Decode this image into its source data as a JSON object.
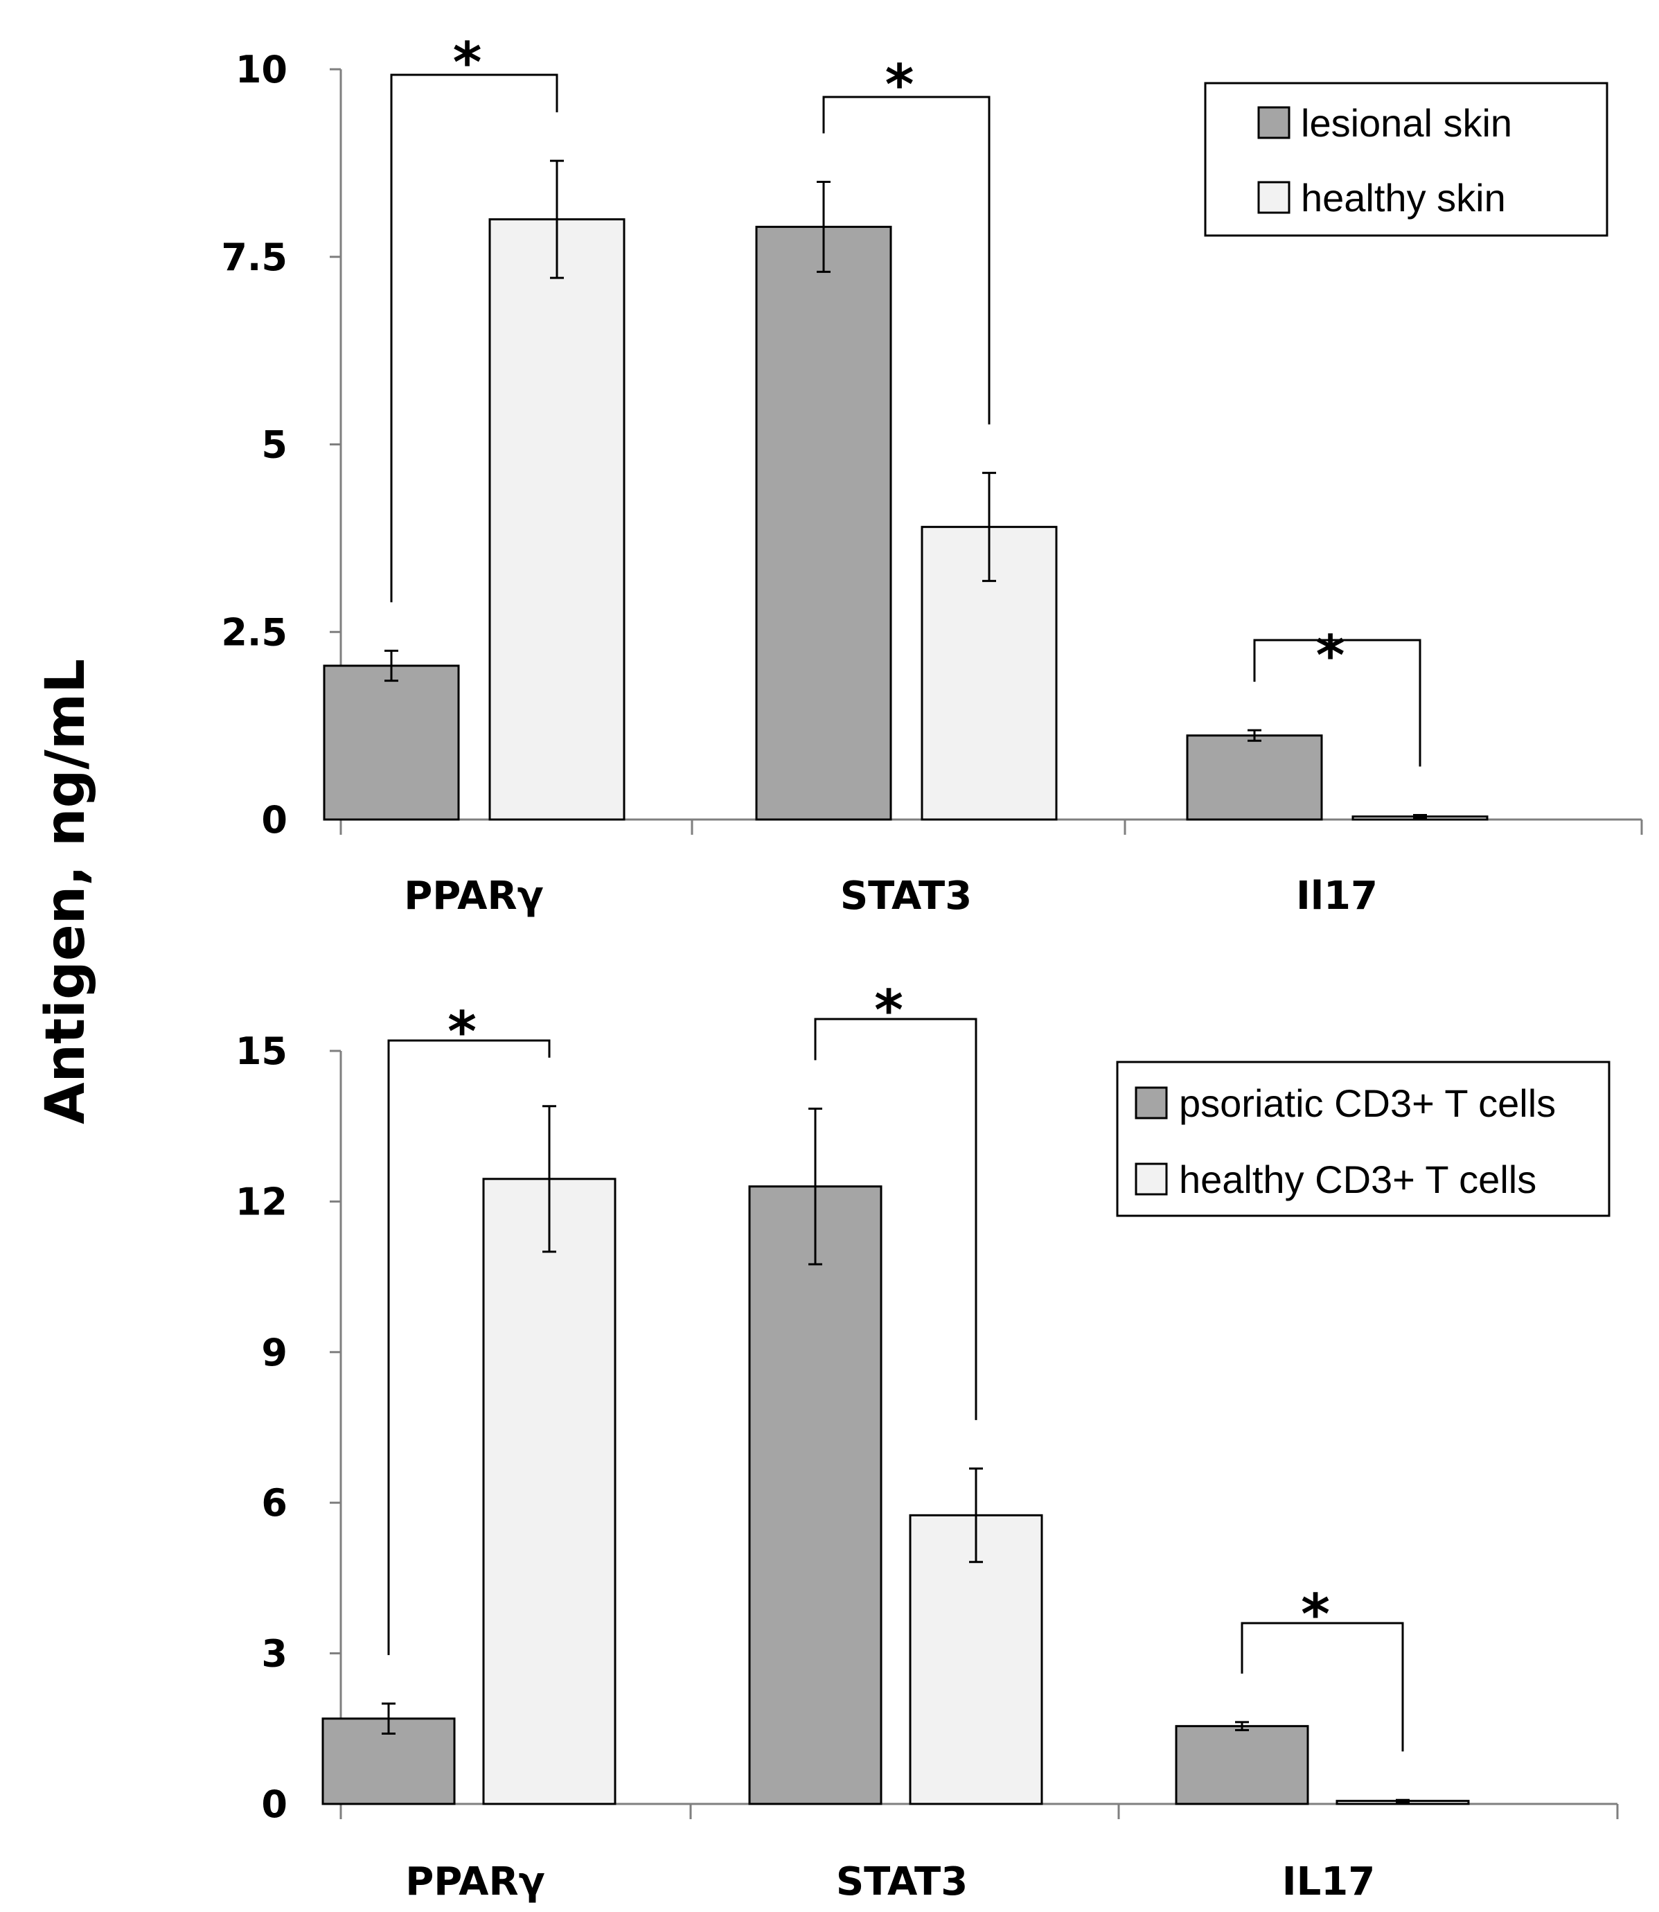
{
  "y_axis_title": "Antigen, ng/mL",
  "colors": {
    "series_a": "#a5a5a5",
    "series_b": "#f2f2f2",
    "stroke": "#000000",
    "axis": "#7f7f7f"
  },
  "chart_data": [
    {
      "type": "bar",
      "categories": [
        "PPARγ",
        "STAT3",
        "Il17"
      ],
      "series": [
        {
          "name": "lesional skin",
          "values": [
            2.05,
            7.9,
            1.12
          ],
          "errors": [
            0.2,
            0.6,
            0.07
          ]
        },
        {
          "name": "healthy skin",
          "values": [
            8.0,
            3.9,
            0.04
          ],
          "errors": [
            0.78,
            0.72,
            0.02
          ]
        }
      ],
      "yticks": [
        0,
        2.5,
        5,
        7.5,
        10
      ],
      "ytick_labels": [
        "0",
        "2.5",
        "5",
        "7.5",
        "10"
      ],
      "ylim": [
        0,
        10
      ],
      "significance": [
        {
          "category": 0,
          "label": "*"
        },
        {
          "category": 1,
          "label": "*"
        },
        {
          "category": 2,
          "label": "*"
        }
      ],
      "legend_position": "top-right"
    },
    {
      "type": "bar",
      "categories": [
        "PPARγ",
        "STAT3",
        "IL17"
      ],
      "series": [
        {
          "name": "psoriatic CD3+ T cells",
          "values": [
            1.7,
            12.3,
            1.55
          ],
          "errors": [
            0.3,
            1.55,
            0.08
          ]
        },
        {
          "name": "healthy CD3+ T cells",
          "values": [
            12.45,
            5.75,
            0.06
          ],
          "errors": [
            1.45,
            0.93,
            0.02
          ]
        }
      ],
      "yticks": [
        0,
        3,
        6,
        9,
        12,
        15
      ],
      "ytick_labels": [
        "0",
        "3",
        "6",
        "9",
        "12",
        "15"
      ],
      "ylim": [
        0,
        15
      ],
      "significance": [
        {
          "category": 0,
          "label": "*"
        },
        {
          "category": 1,
          "label": "*"
        },
        {
          "category": 2,
          "label": "*"
        }
      ],
      "legend_position": "top-right"
    }
  ]
}
